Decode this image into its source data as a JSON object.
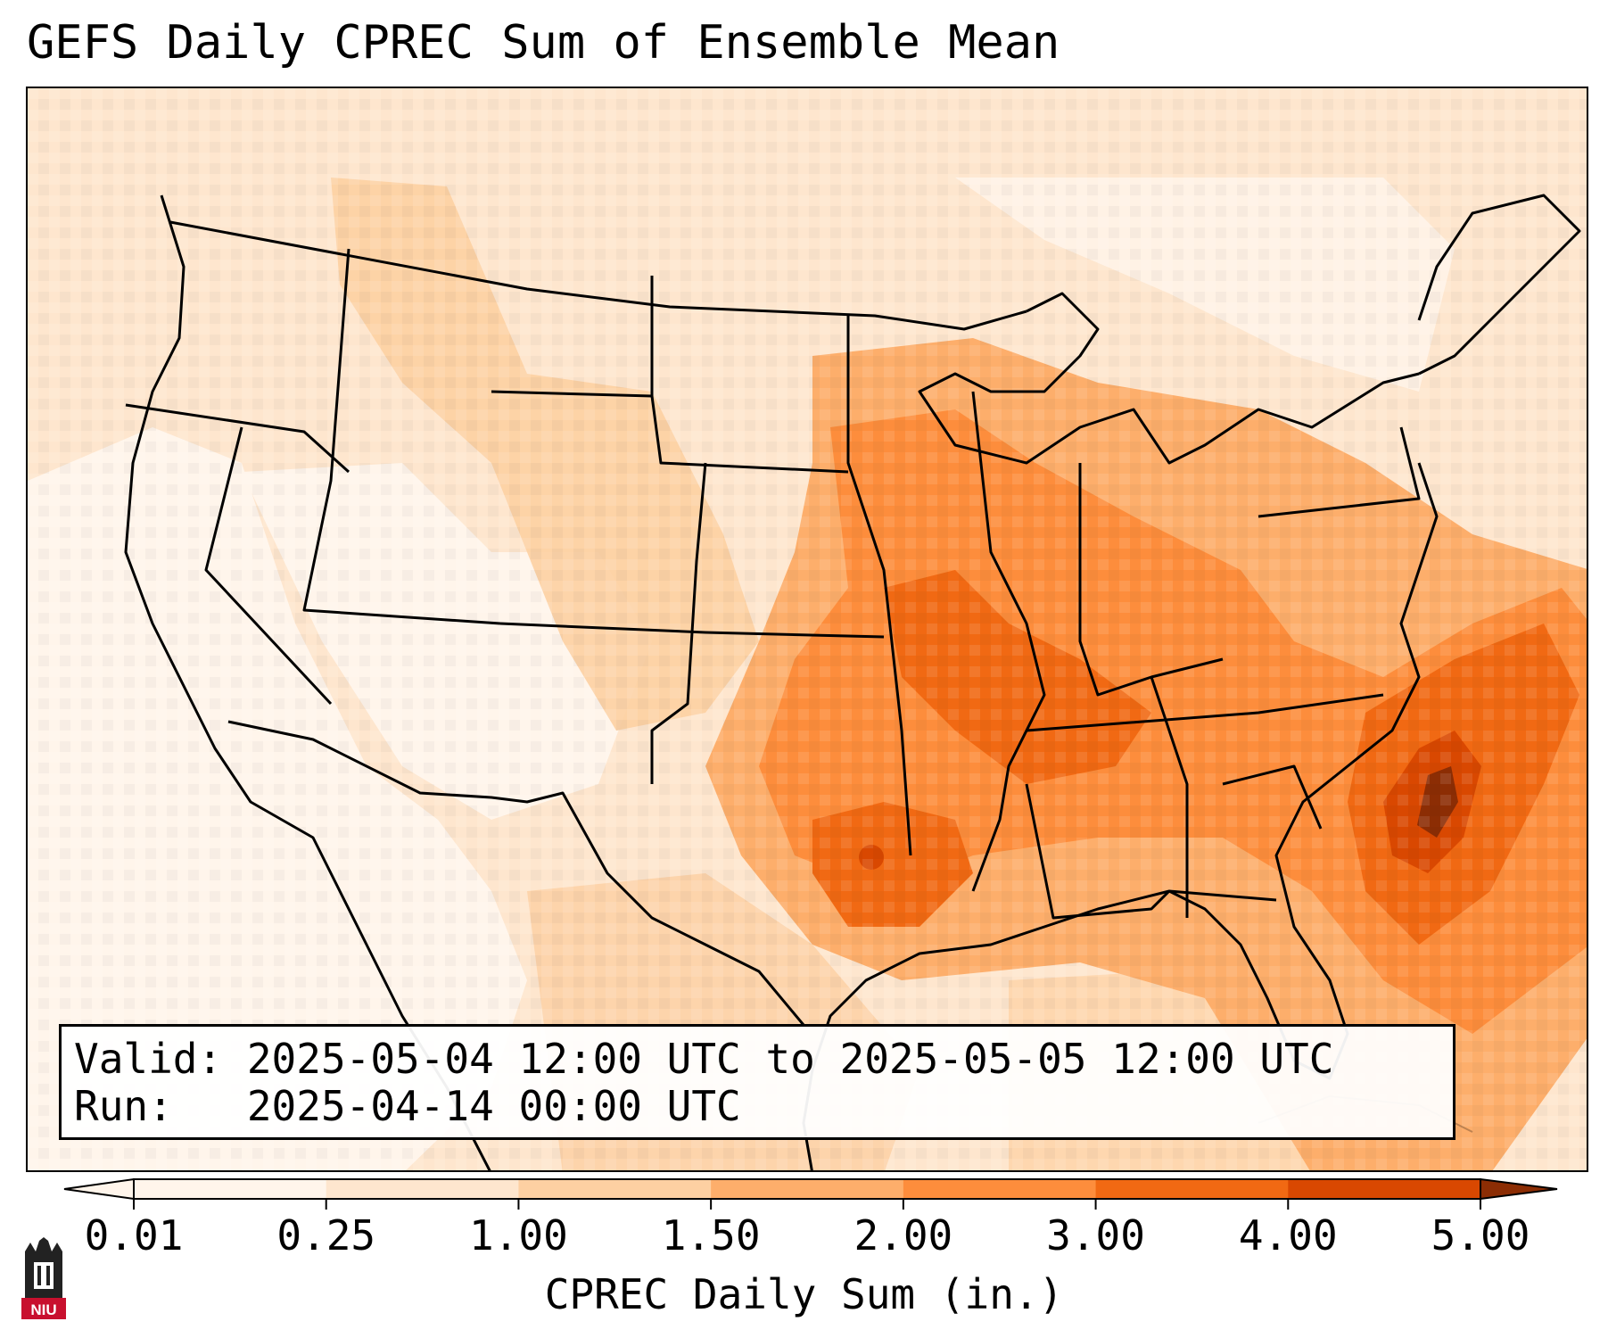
{
  "title": "GEFS Daily CPREC Sum of Ensemble Mean",
  "info": {
    "valid_line": "Valid: 2025-05-04 12:00 UTC to 2025-05-05 12:00 UTC",
    "run_line": "Run:   2025-04-14 00:00 UTC"
  },
  "colorbar": {
    "label": "CPREC Daily Sum (in.)",
    "ticks": [
      "0.01",
      "0.25",
      "1.00",
      "1.50",
      "2.00",
      "3.00",
      "4.00",
      "5.00"
    ],
    "levels": [
      0.01,
      0.25,
      1.0,
      1.5,
      2.0,
      3.0,
      4.0,
      5.0
    ],
    "colors": [
      "#fff5eb",
      "#fee6ce",
      "#fdd0a2",
      "#fdae6b",
      "#fd8d3c",
      "#f16913",
      "#d94801",
      "#8c2d04"
    ],
    "extend": "both"
  },
  "logo": {
    "text": "NIU"
  }
}
